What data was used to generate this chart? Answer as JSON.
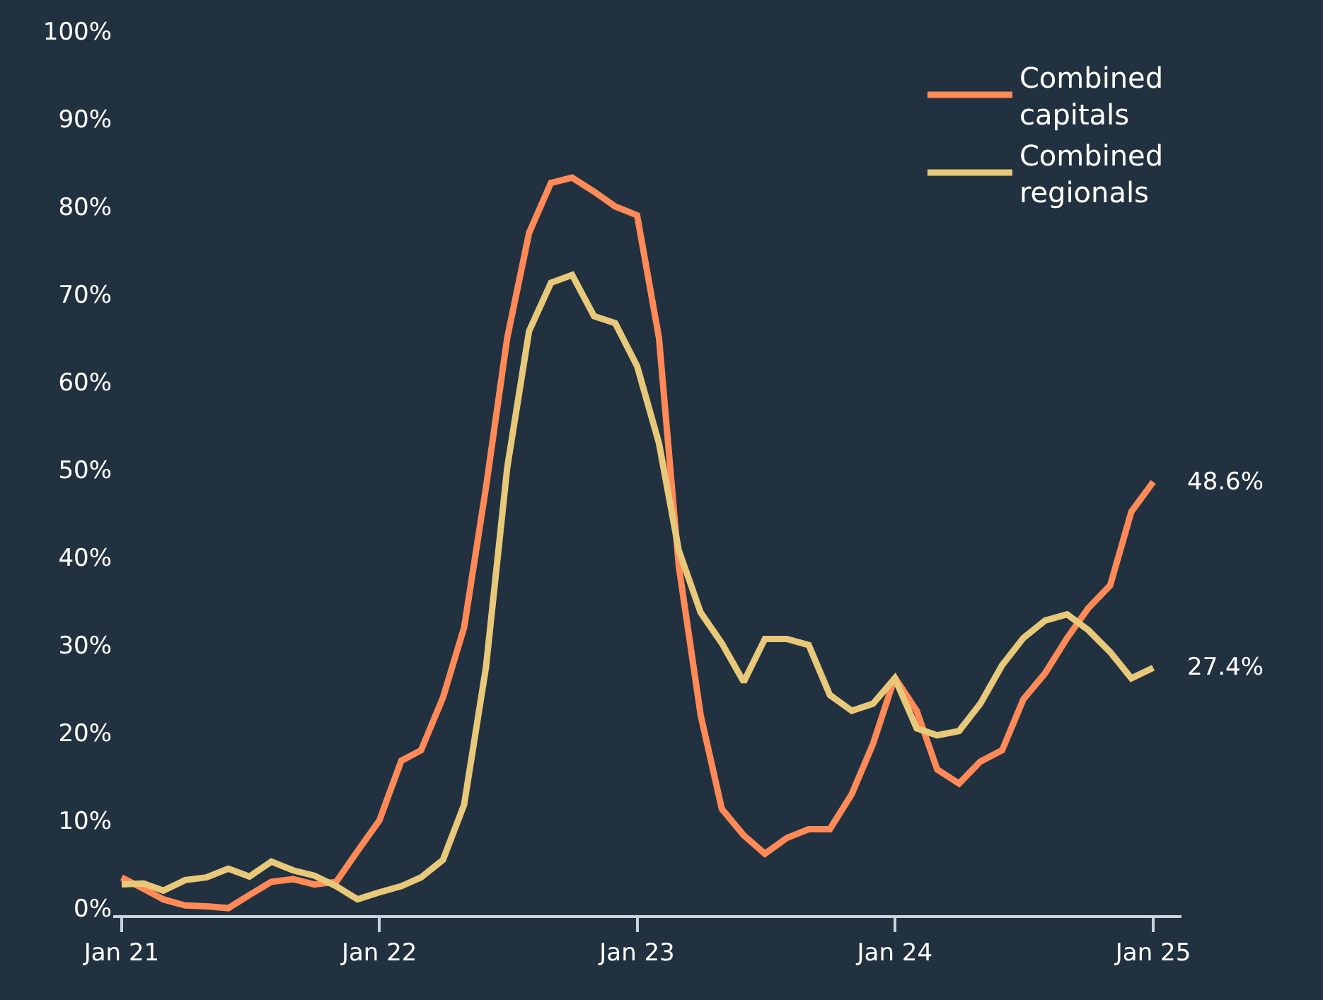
{
  "chart_data": {
    "type": "line",
    "x": [
      "2021-01",
      "2021-02",
      "2021-03",
      "2021-04",
      "2021-05",
      "2021-06",
      "2021-07",
      "2021-08",
      "2021-09",
      "2021-10",
      "2021-11",
      "2021-12",
      "2022-01",
      "2022-02",
      "2022-03",
      "2022-04",
      "2022-05",
      "2022-06",
      "2022-07",
      "2022-08",
      "2022-09",
      "2022-10",
      "2022-11",
      "2022-12",
      "2023-01",
      "2023-02",
      "2023-03",
      "2023-04",
      "2023-05",
      "2023-06",
      "2023-07",
      "2023-08",
      "2023-09",
      "2023-10",
      "2023-11",
      "2023-12",
      "2024-01",
      "2024-02",
      "2024-03",
      "2024-04",
      "2024-05",
      "2024-06",
      "2024-07",
      "2024-08",
      "2024-09",
      "2024-10",
      "2024-11",
      "2024-12",
      "2025-01"
    ],
    "series": [
      {
        "name": "Combined capitals",
        "color": "#ff8a57",
        "values": [
          3.5,
          2.2,
          1.0,
          0.3,
          0.2,
          0.0,
          1.5,
          3.0,
          3.3,
          2.7,
          3.0,
          6.5,
          10,
          16.8,
          18,
          24,
          32,
          48,
          65,
          77,
          82.7,
          83.3,
          81.7,
          80,
          79,
          65,
          39,
          22,
          11.3,
          8.3,
          6.2,
          8,
          9,
          9,
          13,
          18.7,
          26.3,
          22.5,
          15.8,
          14.2,
          16.7,
          18,
          23.8,
          26.8,
          30.8,
          34.2,
          36.8,
          45.2,
          48.6
        ]
      },
      {
        "name": "Combined regionals",
        "color": "#e8c97a",
        "values": [
          2.7,
          2.8,
          2.0,
          3.2,
          3.5,
          4.5,
          3.6,
          5.3,
          4.3,
          3.7,
          2.5,
          1.0,
          1.8,
          2.5,
          3.5,
          5.5,
          11.8,
          27.5,
          50.2,
          65.8,
          71.3,
          72.2,
          67.5,
          66.7,
          61.8,
          53,
          40.8,
          33.7,
          30.2,
          25.8,
          30.7,
          30.7,
          30,
          24.3,
          22.5,
          23.3,
          26.2,
          20.5,
          19.7,
          20.2,
          23.3,
          27.7,
          30.8,
          32.8,
          33.5,
          31.7,
          29.2,
          26.2,
          27.4
        ]
      }
    ],
    "xlim": [
      "2020-12-20",
      "2025-02-10"
    ],
    "xticks": [
      {
        "value": "2021-01",
        "label": "Jan 21"
      },
      {
        "value": "2022-01",
        "label": "Jan 22"
      },
      {
        "value": "2023-01",
        "label": "Jan 23"
      },
      {
        "value": "2024-01",
        "label": "Jan 24"
      },
      {
        "value": "2025-01",
        "label": "Jan 25"
      }
    ],
    "ylim": [
      -0.8,
      100
    ],
    "yticks": [
      {
        "value": 0,
        "label": "0%"
      },
      {
        "value": 10,
        "label": "10%"
      },
      {
        "value": 20,
        "label": "20%"
      },
      {
        "value": 30,
        "label": "30%"
      },
      {
        "value": 40,
        "label": "40%"
      },
      {
        "value": 50,
        "label": "50%"
      },
      {
        "value": 60,
        "label": "60%"
      },
      {
        "value": 70,
        "label": "70%"
      },
      {
        "value": 80,
        "label": "80%"
      },
      {
        "value": 90,
        "label": "90%"
      },
      {
        "value": 100,
        "label": "100%"
      }
    ],
    "annotations": [
      {
        "text": "48.6%",
        "x": "2025-01",
        "y": 48.6
      },
      {
        "text": "27.4%",
        "x": "2025-01",
        "y": 27.4
      }
    ],
    "grid": false,
    "legend": "top right",
    "marker": "none",
    "line_style": "solid"
  }
}
